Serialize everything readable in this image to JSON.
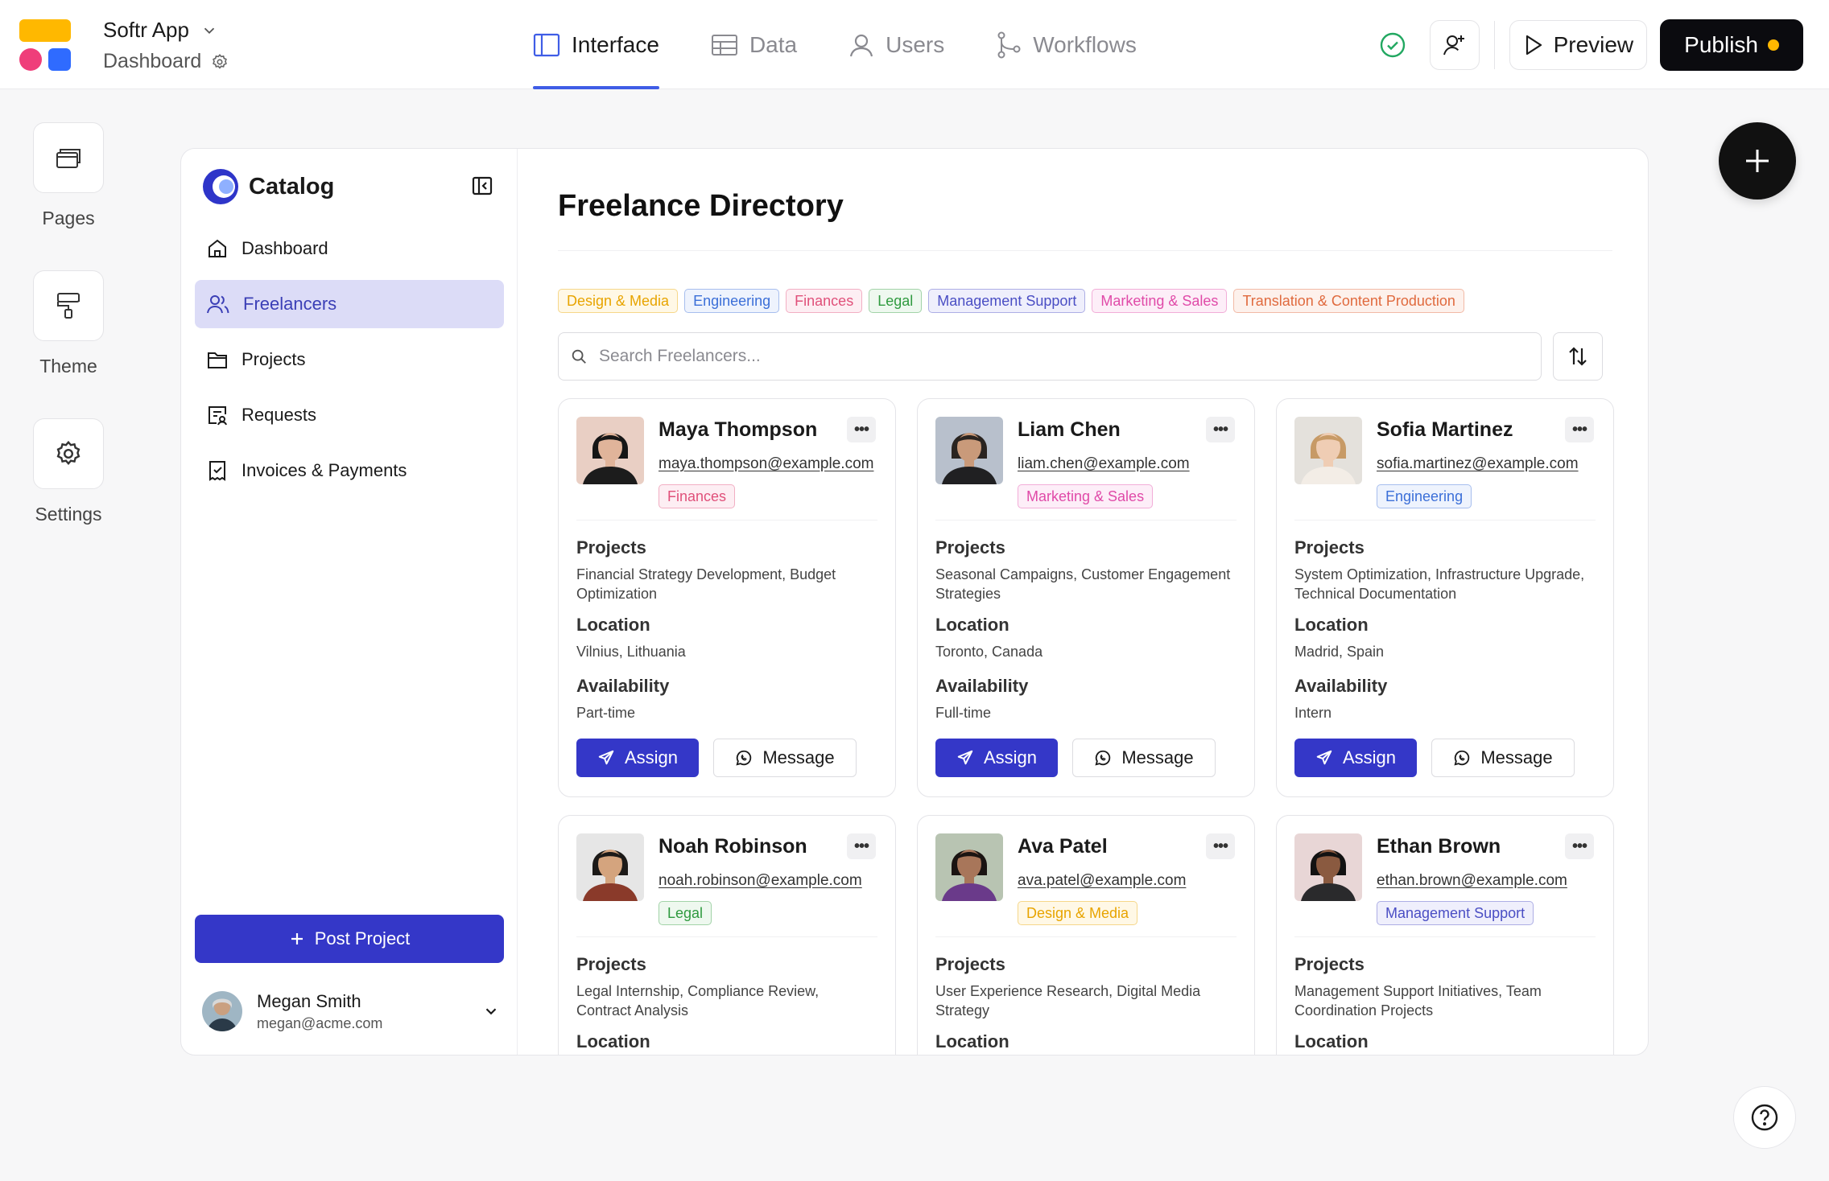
{
  "header": {
    "app_name": "Softr App",
    "page_name": "Dashboard",
    "tabs": [
      {
        "label": "Interface",
        "icon": "layout-icon",
        "active": true
      },
      {
        "label": "Data",
        "icon": "table-icon",
        "active": false
      },
      {
        "label": "Users",
        "icon": "user-icon",
        "active": false
      },
      {
        "label": "Workflows",
        "icon": "workflow-icon",
        "active": false
      }
    ],
    "preview_label": "Preview",
    "publish_label": "Publish",
    "colors": {
      "accent": "#3f5de6",
      "publish_bg": "#0b0b0f",
      "unpublished_dot": "#ffb800",
      "ok": "#22a861"
    }
  },
  "rail": {
    "items": [
      {
        "label": "Pages",
        "icon": "pages-icon"
      },
      {
        "label": "Theme",
        "icon": "paint-roller-icon"
      },
      {
        "label": "Settings",
        "icon": "gear-icon"
      }
    ]
  },
  "sidebar": {
    "brand": "Catalog",
    "items": [
      {
        "label": "Dashboard",
        "icon": "home-icon",
        "active": false
      },
      {
        "label": "Freelancers",
        "icon": "users-icon",
        "active": true
      },
      {
        "label": "Projects",
        "icon": "folder-icon",
        "active": false
      },
      {
        "label": "Requests",
        "icon": "request-icon",
        "active": false
      },
      {
        "label": "Invoices & Payments",
        "icon": "invoice-icon",
        "active": false
      }
    ],
    "post_project_label": "Post Project",
    "user": {
      "name": "Megan Smith",
      "email": "megan@acme.com"
    }
  },
  "main": {
    "title": "Freelance Directory",
    "filters": [
      {
        "label": "Design & Media",
        "color": "#e8a400",
        "bg": "#fff8e6"
      },
      {
        "label": "Engineering",
        "color": "#3b6fd8",
        "bg": "#eef3fd"
      },
      {
        "label": "Finances",
        "color": "#e0507a",
        "bg": "#fdeef3"
      },
      {
        "label": "Legal",
        "color": "#2f9a3f",
        "bg": "#eef8ef"
      },
      {
        "label": "Management Support",
        "color": "#4a4ec4",
        "bg": "#efeffc"
      },
      {
        "label": "Marketing & Sales",
        "color": "#e04aa8",
        "bg": "#fdeef8"
      },
      {
        "label": "Translation & Content Production",
        "color": "#e06a3e",
        "bg": "#fdf1ec"
      }
    ],
    "search_placeholder": "Search Freelancers...",
    "labels": {
      "projects": "Projects",
      "location": "Location",
      "availability": "Availability",
      "assign": "Assign",
      "message": "Message"
    },
    "cards": [
      {
        "name": "Maya Thompson",
        "email": "maya.thompson@example.com",
        "tag": "Finances",
        "tag_color": "#e0507a",
        "tag_bg": "#fdeef3",
        "projects": "Financial Strategy Development, Budget Optimization",
        "location": "Vilnius, Lithuania",
        "availability": "Part-time",
        "skin": "#e0b49a",
        "hair": "#161616",
        "shirt": "#1c1c1c",
        "bg": "#e9cfc4"
      },
      {
        "name": "Liam Chen",
        "email": "liam.chen@example.com",
        "tag": "Marketing & Sales",
        "tag_color": "#e04aa8",
        "tag_bg": "#fdeef8",
        "projects": "Seasonal Campaigns, Customer Engagement Strategies",
        "location": "Toronto, Canada",
        "availability": "Full-time",
        "skin": "#c99a7a",
        "hair": "#2a2420",
        "shirt": "#202022",
        "bg": "#b8c0cc"
      },
      {
        "name": "Sofia Martinez",
        "email": "sofia.martinez@example.com",
        "tag": "Engineering",
        "tag_color": "#3b6fd8",
        "tag_bg": "#eef3fd",
        "projects": "System Optimization, Infrastructure Upgrade, Technical Documentation",
        "location": "Madrid, Spain",
        "availability": "Intern",
        "skin": "#efcdb4",
        "hair": "#c79a66",
        "shirt": "#f3ede6",
        "bg": "#e4e1dc"
      },
      {
        "name": "Noah Robinson",
        "email": "noah.robinson@example.com",
        "tag": "Legal",
        "tag_color": "#2f9a3f",
        "tag_bg": "#eef8ef",
        "projects": "Legal Internship, Compliance Review, Contract Analysis",
        "location": "",
        "availability": "",
        "skin": "#d4a47e",
        "hair": "#1c1a18",
        "shirt": "#8a3a2a",
        "bg": "#e6e6e6"
      },
      {
        "name": "Ava Patel",
        "email": "ava.patel@example.com",
        "tag": "Design & Media",
        "tag_color": "#e8a400",
        "tag_bg": "#fff8e6",
        "projects": "User Experience Research, Digital Media Strategy",
        "location": "",
        "availability": "",
        "skin": "#a8765a",
        "hair": "#1a1412",
        "shirt": "#6a3a8a",
        "bg": "#b8c4b2"
      },
      {
        "name": "Ethan Brown",
        "email": "ethan.brown@example.com",
        "tag": "Management Support",
        "tag_color": "#4a4ec4",
        "tag_bg": "#efeffc",
        "projects": "Management Support Initiatives, Team Coordination Projects",
        "location": "",
        "availability": "",
        "skin": "#8a5a40",
        "hair": "#121212",
        "shirt": "#2a2a2c",
        "bg": "#e8d6d6"
      }
    ]
  }
}
